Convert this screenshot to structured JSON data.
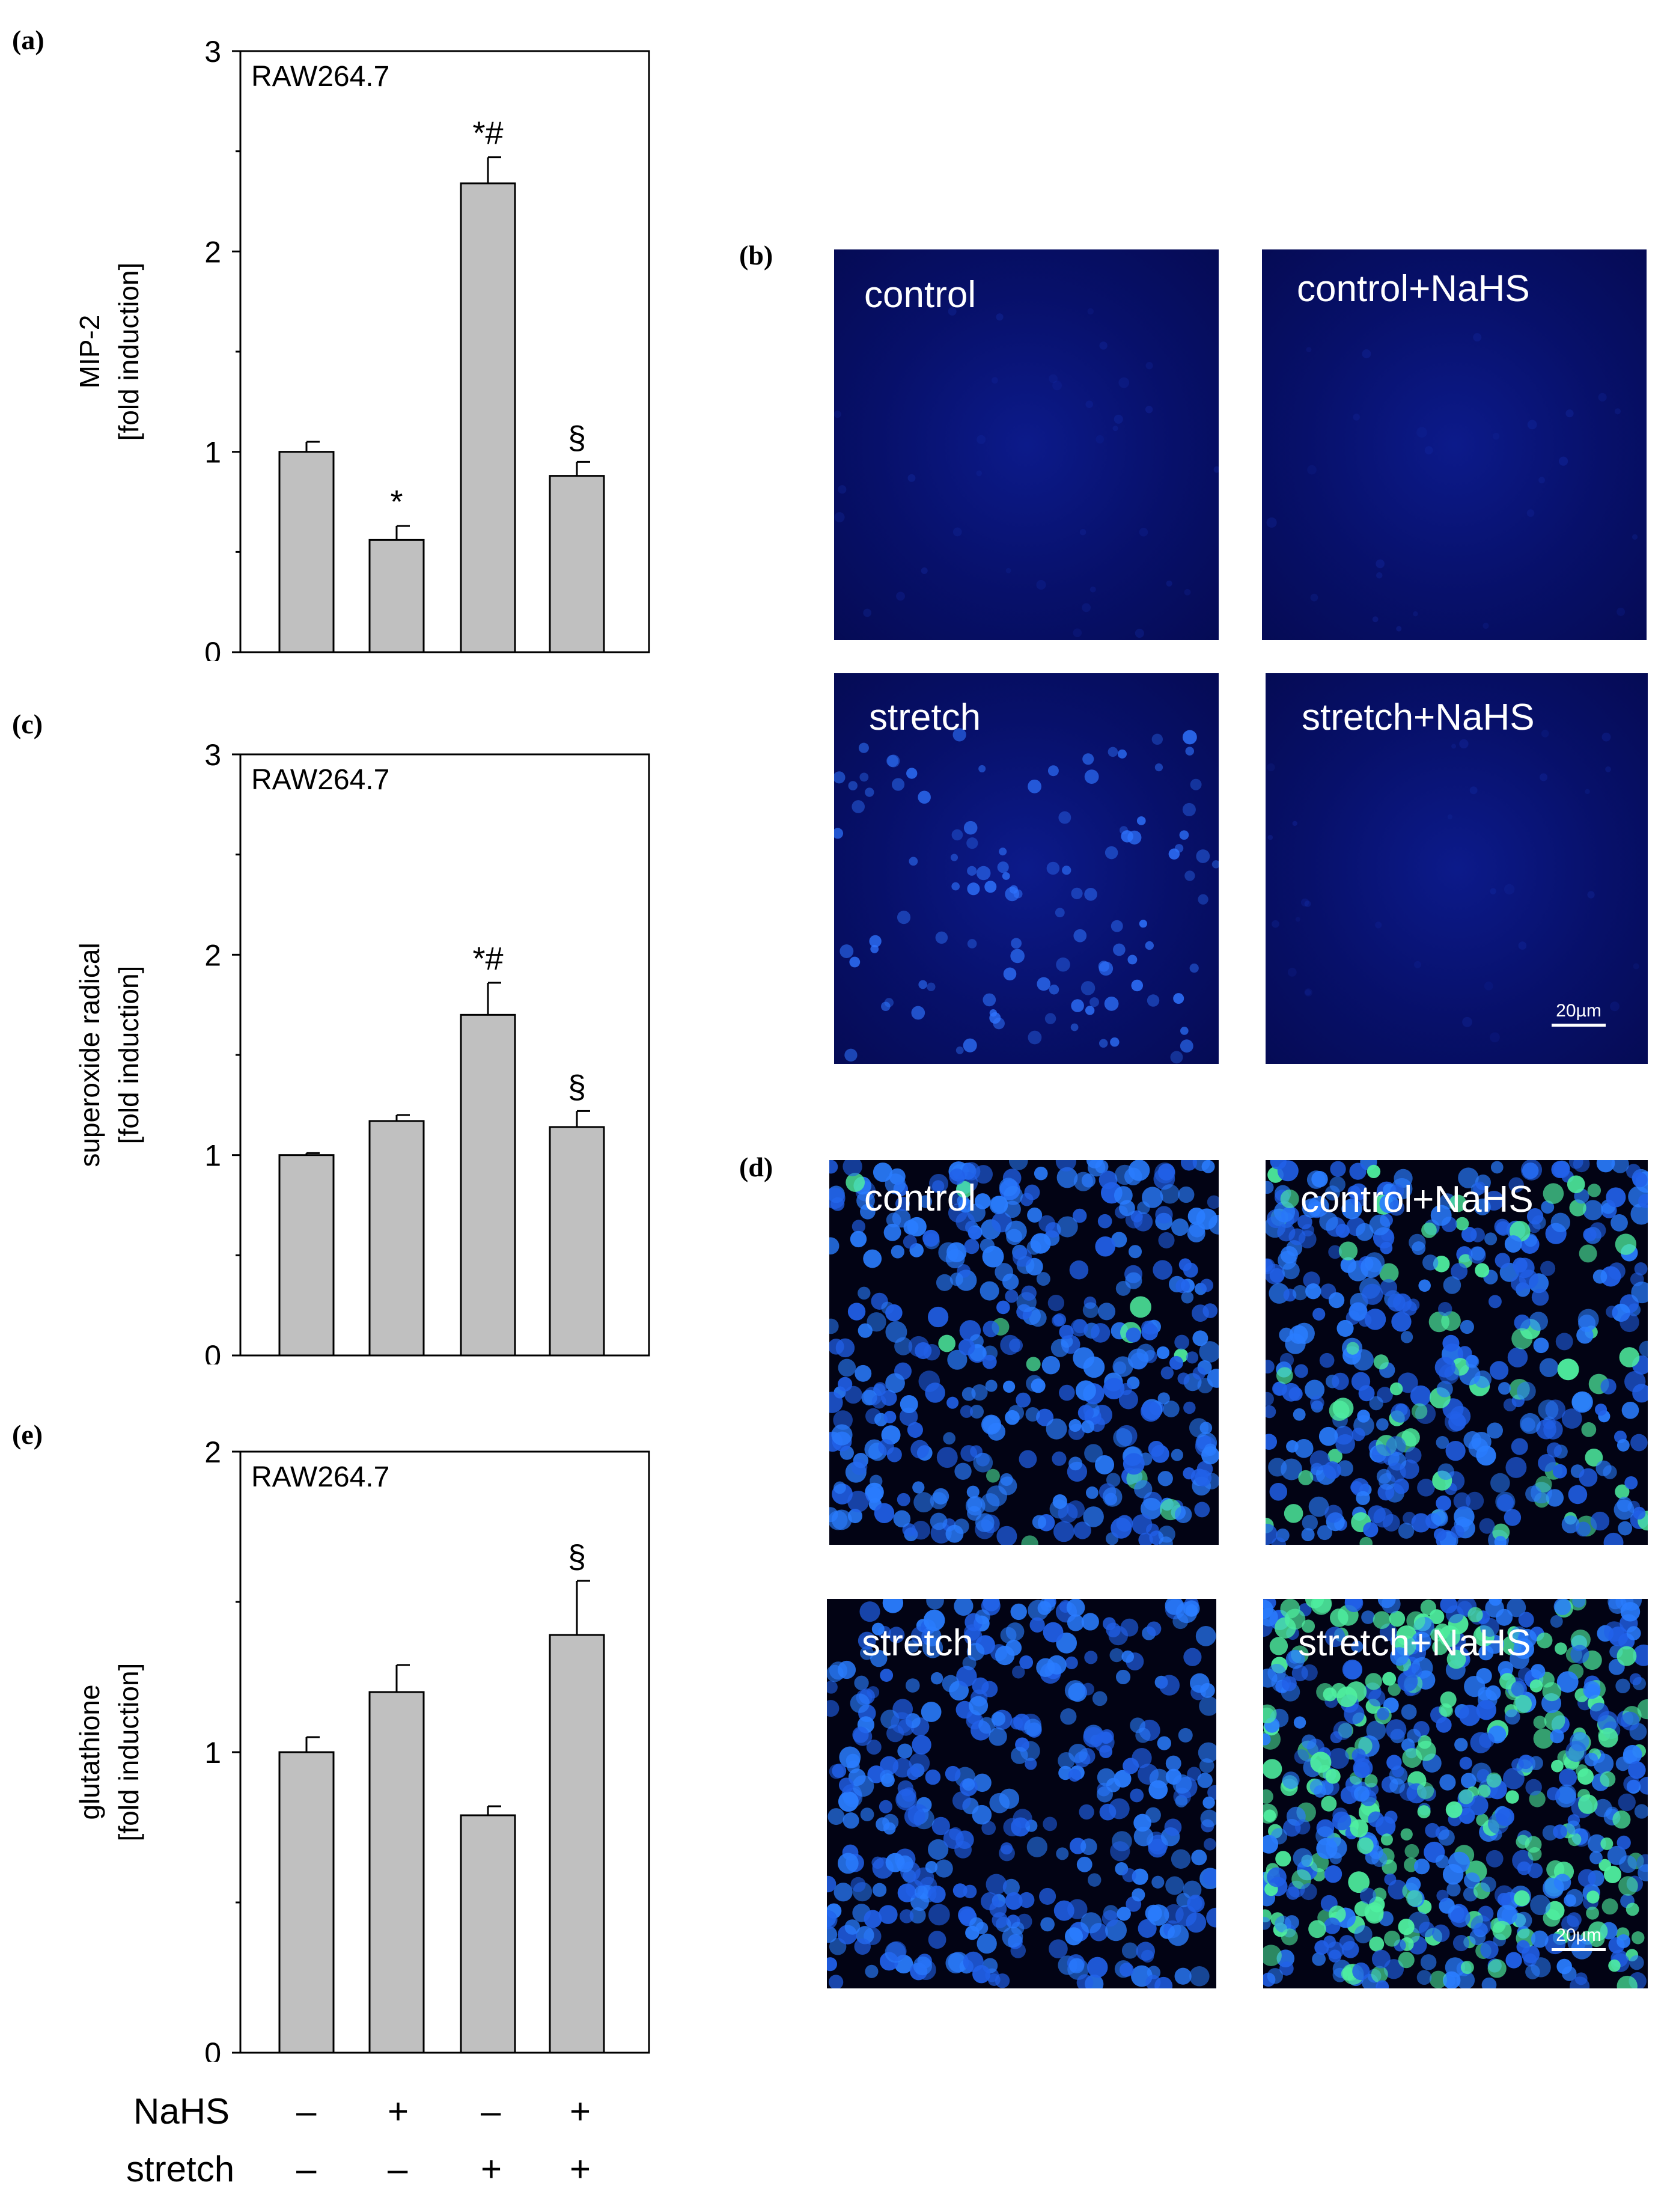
{
  "panel_labels": {
    "a": "(a)",
    "b": "(b)",
    "c": "(c)",
    "d": "(d)",
    "e": "(e)"
  },
  "chart_data": [
    {
      "id": "a",
      "type": "bar",
      "annotation": "RAW264.7",
      "ylabel": "MIP-2",
      "ylabel2": "[fold induction]",
      "ylim": [
        0,
        3
      ],
      "yticks": [
        "0",
        "1",
        "2",
        "3"
      ],
      "values": [
        1.0,
        0.56,
        2.34,
        0.88
      ],
      "errors": [
        0.05,
        0.07,
        0.13,
        0.07
      ],
      "markers": [
        "",
        "*",
        "*#",
        "§"
      ]
    },
    {
      "id": "c",
      "type": "bar",
      "annotation": "RAW264.7",
      "ylabel": "superoxide radical",
      "ylabel2": "[fold induction]",
      "ylim": [
        0,
        3
      ],
      "yticks": [
        "0",
        "1",
        "2",
        "3"
      ],
      "values": [
        1.0,
        1.17,
        1.7,
        1.14
      ],
      "errors": [
        0.01,
        0.03,
        0.16,
        0.08
      ],
      "markers": [
        "",
        "",
        "*#",
        "§"
      ]
    },
    {
      "id": "e",
      "type": "bar",
      "annotation": "RAW264.7",
      "ylabel": "glutathione",
      "ylabel2": "[fold induction]",
      "ylim": [
        0,
        2
      ],
      "yticks": [
        "0",
        "1",
        "2"
      ],
      "values": [
        1.0,
        1.2,
        0.79,
        1.39
      ],
      "errors": [
        0.05,
        0.09,
        0.03,
        0.18
      ],
      "markers": [
        "",
        "",
        "",
        "§"
      ]
    }
  ],
  "conditions": {
    "nahs_label": "NaHS",
    "stretch_label": "stretch",
    "nahs": [
      "–",
      "+",
      "–",
      "+"
    ],
    "stretch": [
      "–",
      "–",
      "+",
      "+"
    ]
  },
  "micrographs_b": {
    "labels": [
      "control",
      "control+NaHS",
      "stretch",
      "stretch+NaHS"
    ],
    "scale_bar": "20µm"
  },
  "micrographs_d": {
    "labels": [
      "control",
      "control+NaHS",
      "stretch",
      "stretch+NaHS"
    ],
    "scale_bar": "20µm"
  },
  "colors": {
    "bar_fill": "#c0c0c0",
    "micrograph_b_bg": "#0a0f6e",
    "micrograph_d_bg": "#020314",
    "nucleus": "#2a6cff",
    "green_cell": "#4ff0a0"
  }
}
